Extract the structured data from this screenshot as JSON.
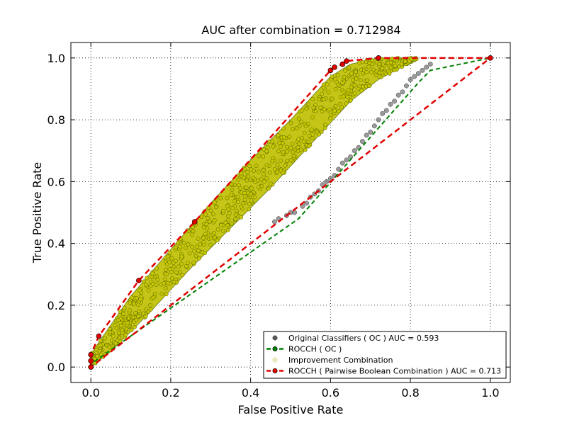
{
  "chart_data": {
    "type": "scatter",
    "title": "AUC after combination = 0.712984",
    "xlabel": "False Positive Rate",
    "ylabel": "True Positive Rate",
    "xlim": [
      -0.05,
      1.05
    ],
    "ylim": [
      -0.05,
      1.05
    ],
    "xticks": [
      "0.0",
      "0.2",
      "0.4",
      "0.6",
      "0.8",
      "1.0"
    ],
    "yticks": [
      "0.0",
      "0.2",
      "0.4",
      "0.6",
      "0.8",
      "1.0"
    ],
    "grid": true,
    "legend_position": "lower-right",
    "series": [
      {
        "name": "Original Classifiers ( OC ) AUC = 0.593",
        "kind": "scatter",
        "color": "#555555",
        "x": [
          0.46,
          0.47,
          0.49,
          0.5,
          0.51,
          0.53,
          0.54,
          0.55,
          0.56,
          0.57,
          0.58,
          0.59,
          0.6,
          0.61,
          0.62,
          0.63,
          0.64,
          0.65,
          0.66,
          0.67,
          0.68,
          0.69,
          0.7,
          0.71,
          0.72,
          0.73,
          0.74,
          0.75,
          0.76,
          0.77,
          0.78,
          0.79,
          0.8,
          0.81,
          0.82,
          0.83,
          0.84,
          0.85
        ],
        "y": [
          0.47,
          0.48,
          0.49,
          0.5,
          0.5,
          0.52,
          0.53,
          0.55,
          0.56,
          0.57,
          0.59,
          0.6,
          0.61,
          0.62,
          0.64,
          0.66,
          0.67,
          0.68,
          0.7,
          0.71,
          0.73,
          0.75,
          0.76,
          0.78,
          0.8,
          0.82,
          0.83,
          0.85,
          0.86,
          0.88,
          0.89,
          0.91,
          0.93,
          0.94,
          0.95,
          0.96,
          0.97,
          0.98
        ]
      },
      {
        "name": "ROCCH ( OC )",
        "kind": "line",
        "color": "#008000",
        "x": [
          0.0,
          0.0,
          0.52,
          0.82,
          0.85,
          1.0
        ],
        "y": [
          0.0,
          0.01,
          0.48,
          0.92,
          0.96,
          1.0
        ]
      },
      {
        "name": "Improvement Combination",
        "kind": "band",
        "color": "#bfbf00",
        "upper_x": [
          0.0,
          0.02,
          0.1,
          0.2,
          0.3,
          0.4,
          0.5,
          0.6,
          0.65,
          0.72,
          0.78,
          0.82
        ],
        "upper_y": [
          0.04,
          0.08,
          0.23,
          0.38,
          0.53,
          0.67,
          0.8,
          0.94,
          0.98,
          1.0,
          1.0,
          1.0
        ],
        "lower_x": [
          0.82,
          0.72,
          0.65,
          0.55,
          0.45,
          0.35,
          0.25,
          0.15,
          0.05,
          0.0
        ],
        "lower_y": [
          1.0,
          0.93,
          0.86,
          0.72,
          0.58,
          0.45,
          0.32,
          0.18,
          0.05,
          0.0
        ]
      },
      {
        "name": "ROCCH ( Pairwise Boolean Combination ) AUC = 0.713",
        "kind": "line",
        "color": "#e00000",
        "x": [
          0.0,
          0.0,
          0.0,
          0.02,
          0.12,
          0.26,
          0.6,
          0.61,
          0.63,
          0.64,
          0.72,
          1.0,
          0.0
        ],
        "y": [
          0.0,
          0.02,
          0.04,
          0.1,
          0.28,
          0.47,
          0.96,
          0.97,
          0.98,
          0.99,
          1.0,
          1.0,
          0.0
        ]
      }
    ]
  }
}
